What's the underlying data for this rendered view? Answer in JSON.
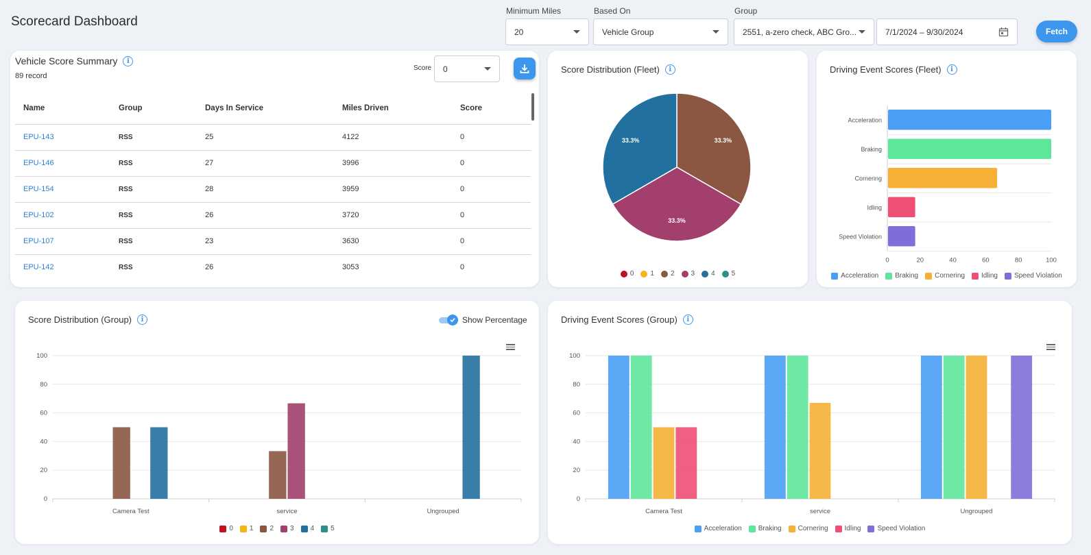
{
  "page": {
    "title": "Scorecard Dashboard"
  },
  "filters": {
    "min_miles": {
      "label": "Minimum Miles",
      "value": "20"
    },
    "based_on": {
      "label": "Based On",
      "value": "Vehicle Group"
    },
    "group": {
      "label": "Group",
      "value": "2551, a-zero check, ABC Gro..."
    },
    "date_range": {
      "value": "7/1/2024 – 9/30/2024"
    },
    "fetch_label": "Fetch"
  },
  "vehicle_summary": {
    "title": "Vehicle Score Summary",
    "record_count": "89 record",
    "score_label": "Score",
    "score_value": "0",
    "columns": [
      "Name",
      "Group",
      "Days In Service",
      "Miles Driven",
      "Score"
    ],
    "rows": [
      [
        "EPU-143",
        "RSS",
        "25",
        "4122",
        "0"
      ],
      [
        "EPU-146",
        "RSS",
        "27",
        "3996",
        "0"
      ],
      [
        "EPU-154",
        "RSS",
        "28",
        "3959",
        "0"
      ],
      [
        "EPU-102",
        "RSS",
        "26",
        "3720",
        "0"
      ],
      [
        "EPU-107",
        "RSS",
        "23",
        "3630",
        "0"
      ],
      [
        "EPU-142",
        "RSS",
        "26",
        "3053",
        "0"
      ]
    ]
  },
  "colors": {
    "s0": "#c0111f",
    "s1": "#f4b41a",
    "s2": "#8b5742",
    "s3": "#a23f6c",
    "s4": "#2270a0",
    "s5": "#2f8d88",
    "acceleration": "#4a9ef5",
    "braking": "#5ee69a",
    "cornering": "#f5b035",
    "idling": "#f04f75",
    "speed": "#7e6fd8"
  },
  "fleet_pie": {
    "title": "Score Distribution (Fleet)",
    "legend": [
      "0",
      "1",
      "2",
      "3",
      "4",
      "5"
    ]
  },
  "fleet_events": {
    "title": "Driving Event Scores (Fleet)",
    "legend": [
      "Acceleration",
      "Braking",
      "Cornering",
      "Idling",
      "Speed Violation"
    ]
  },
  "group_dist": {
    "title": "Score Distribution (Group)",
    "toggle_label": "Show Percentage",
    "legend": [
      "0",
      "1",
      "2",
      "3",
      "4",
      "5"
    ]
  },
  "group_events": {
    "title": "Driving Event Scores (Group)",
    "legend": [
      "Acceleration",
      "Braking",
      "Cornering",
      "Idling",
      "Speed Violation"
    ]
  },
  "chart_data": [
    {
      "type": "pie",
      "title": "Score Distribution (Fleet)",
      "categories": [
        "0",
        "1",
        "2",
        "3",
        "4",
        "5"
      ],
      "values": [
        0,
        0,
        33.3,
        33.3,
        33.3,
        0
      ],
      "labels": [
        "",
        "",
        "33.3%",
        "33.3%",
        "33.3%",
        ""
      ]
    },
    {
      "type": "bar",
      "orientation": "horizontal",
      "title": "Driving Event Scores (Fleet)",
      "categories": [
        "Acceleration",
        "Braking",
        "Cornering",
        "Idling",
        "Speed Violation"
      ],
      "values": [
        100,
        100,
        67,
        17,
        17
      ],
      "xlim": [
        0,
        100
      ],
      "ticks": [
        "0",
        "20",
        "40",
        "60",
        "80",
        "100"
      ]
    },
    {
      "type": "bar",
      "title": "Score Distribution (Group)",
      "categories": [
        "Camera Test",
        "service",
        "Ungrouped"
      ],
      "series": [
        {
          "name": "0",
          "values": [
            0,
            0,
            0
          ]
        },
        {
          "name": "1",
          "values": [
            0,
            0,
            0
          ]
        },
        {
          "name": "2",
          "values": [
            50,
            33.3,
            0
          ]
        },
        {
          "name": "3",
          "values": [
            0,
            66.7,
            0
          ]
        },
        {
          "name": "4",
          "values": [
            50,
            0,
            100
          ]
        },
        {
          "name": "5",
          "values": [
            0,
            0,
            0
          ]
        }
      ],
      "ylim": [
        0,
        100
      ],
      "ticks": [
        "0",
        "20",
        "40",
        "60",
        "80",
        "100"
      ]
    },
    {
      "type": "bar",
      "title": "Driving Event Scores (Group)",
      "categories": [
        "Camera Test",
        "service",
        "Ungrouped"
      ],
      "series": [
        {
          "name": "Acceleration",
          "values": [
            100,
            100,
            100
          ]
        },
        {
          "name": "Braking",
          "values": [
            100,
            100,
            100
          ]
        },
        {
          "name": "Cornering",
          "values": [
            50,
            67,
            100
          ]
        },
        {
          "name": "Idling",
          "values": [
            50,
            0,
            0
          ]
        },
        {
          "name": "Speed Violation",
          "values": [
            0,
            0,
            100
          ]
        }
      ],
      "ylim": [
        0,
        100
      ],
      "ticks": [
        "0",
        "20",
        "40",
        "60",
        "80",
        "100"
      ]
    }
  ]
}
